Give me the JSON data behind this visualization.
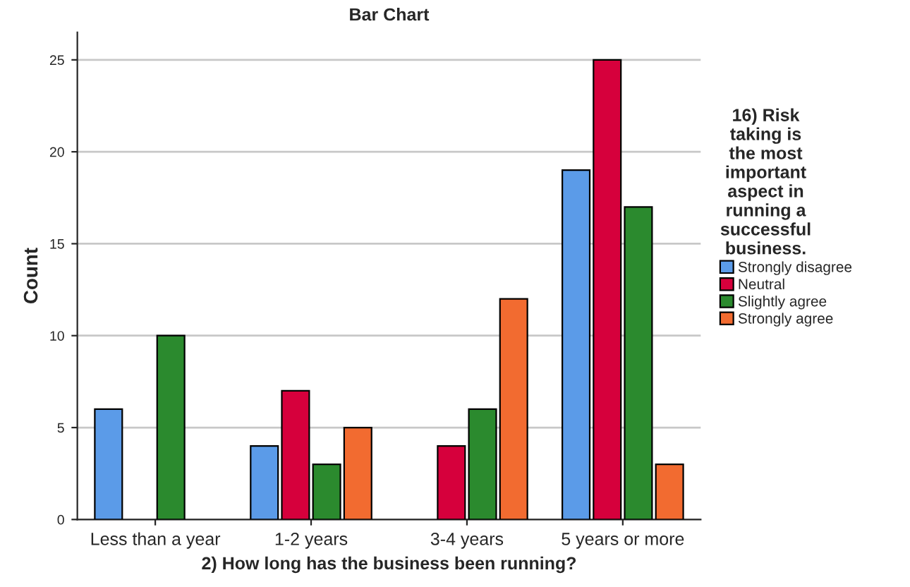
{
  "chart_data": {
    "type": "bar",
    "title": "Bar Chart",
    "xlabel": "2) How long has the business been running?",
    "ylabel": "Count",
    "legend_title": "16) Risk taking is the most important aspect in running a successful business.",
    "categories": [
      "Less than a year",
      "1-2 years",
      "3-4 years",
      "5 years or more"
    ],
    "series": [
      {
        "name": "Strongly disagree",
        "color": "#5b9be8",
        "values": [
          6,
          4,
          null,
          19
        ]
      },
      {
        "name": "Neutral",
        "color": "#d6003c",
        "values": [
          null,
          7,
          4,
          25
        ]
      },
      {
        "name": "Slightly agree",
        "color": "#2b8a2e",
        "values": [
          10,
          3,
          6,
          17
        ]
      },
      {
        "name": "Strongly agree",
        "color": "#f26b30",
        "values": [
          null,
          5,
          12,
          3
        ]
      }
    ],
    "ylim": [
      0,
      26.5
    ],
    "yticks": [
      0,
      5,
      10,
      15,
      20,
      25
    ],
    "grid": "y",
    "legend": "right"
  }
}
